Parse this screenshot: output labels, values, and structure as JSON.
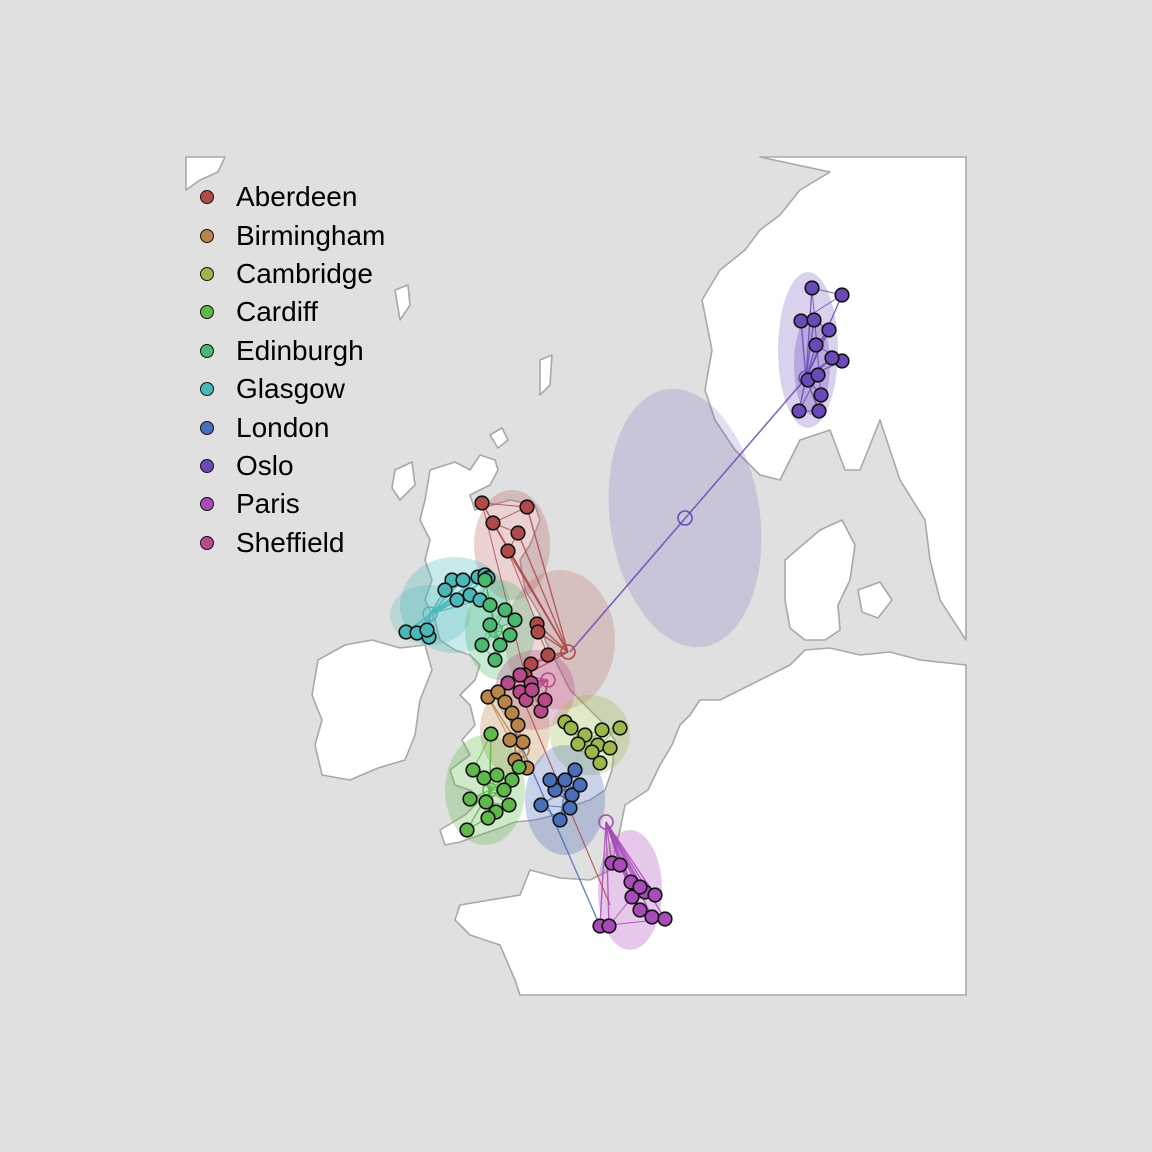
{
  "legend": [
    {
      "name": "Aberdeen",
      "color": "#b04a4a"
    },
    {
      "name": "Birmingham",
      "color": "#b8844a"
    },
    {
      "name": "Cambridge",
      "color": "#9bb84a"
    },
    {
      "name": "Cardiff",
      "color": "#5fb84a"
    },
    {
      "name": "Edinburgh",
      "color": "#4ab86e"
    },
    {
      "name": "Glasgow",
      "color": "#4ab8b8"
    },
    {
      "name": "London",
      "color": "#4a6eb8"
    },
    {
      "name": "Oslo",
      "color": "#6a4ab8"
    },
    {
      "name": "Paris",
      "color": "#a84ab8"
    },
    {
      "name": "Sheffield",
      "color": "#b84a8a"
    }
  ],
  "colors": {
    "background": "#e0e0e0",
    "land": "#ffffff",
    "sea": "#e0e0e0",
    "border": "#a8a8a8"
  }
}
